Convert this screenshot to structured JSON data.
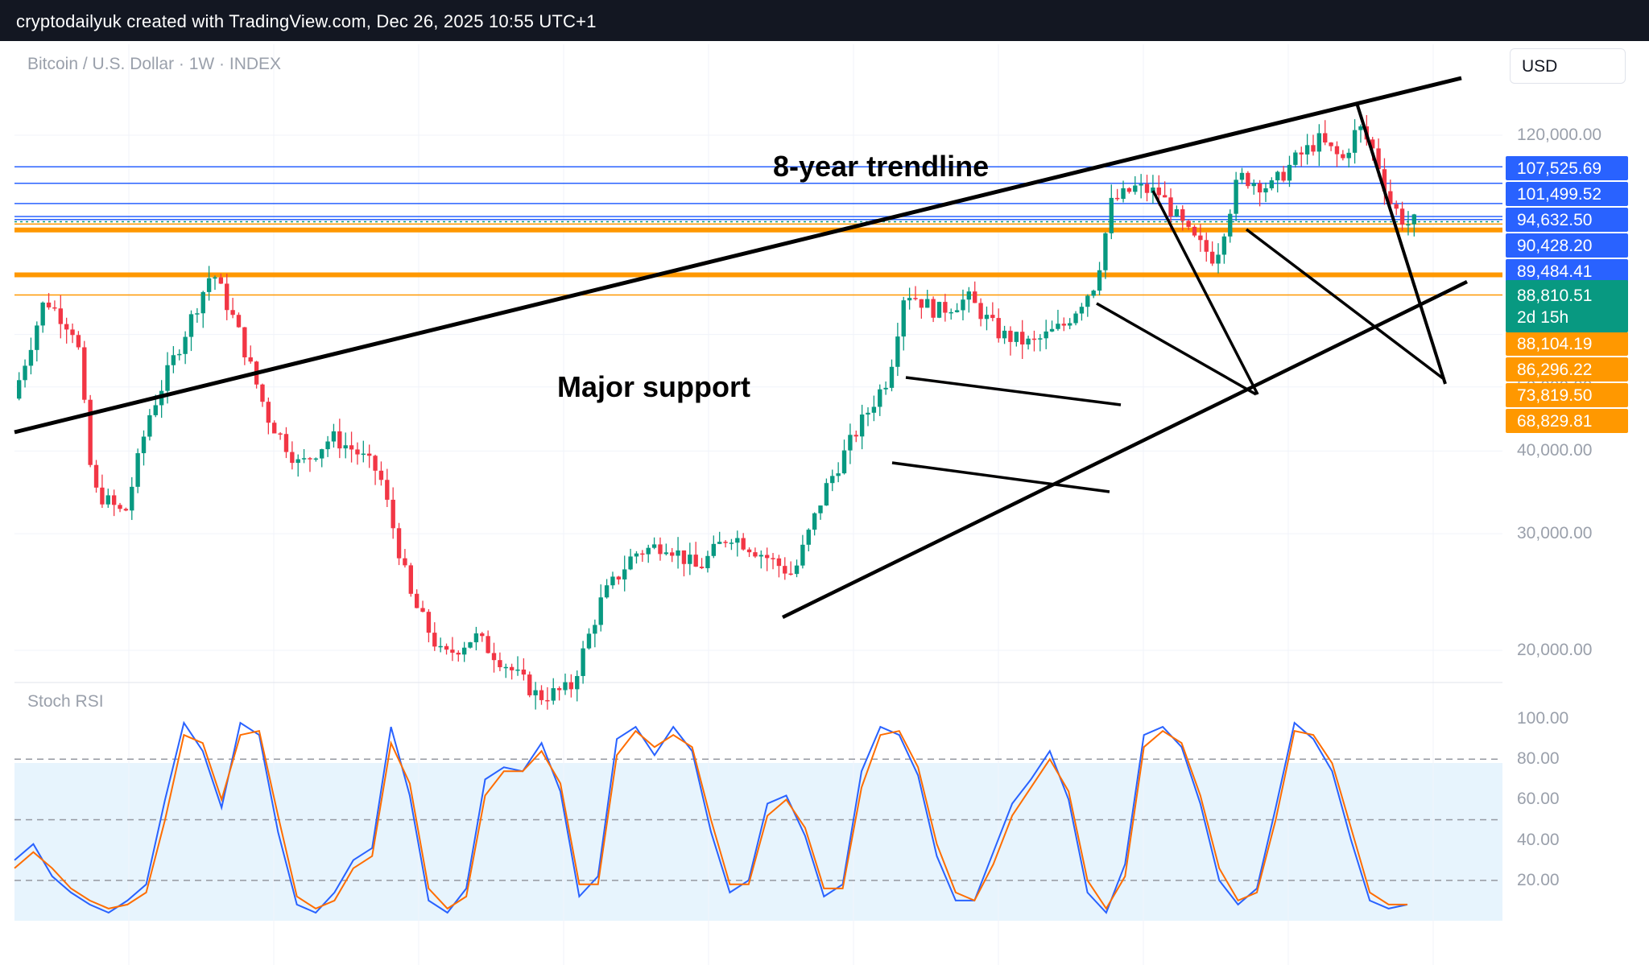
{
  "header": {
    "text": "cryptodailyuk created with TradingView.com, Dec 26, 2025 10:55 UTC+1"
  },
  "symbol": "Bitcoin / U.S. Dollar · 1W · INDEX",
  "currency": "USD",
  "chart_data": [
    {
      "type": "candlestick",
      "title": "Bitcoin / U.S. Dollar · 1W · INDEX",
      "y_scale": "log",
      "ylim": [
        14000,
        160000
      ],
      "y_ticks": [
        "120,000.00",
        "60,000.00",
        "50,000.00",
        "40,000.00",
        "30,000.00",
        "20,000.00"
      ],
      "y_tick_values": [
        120000,
        60000,
        50000,
        40000,
        30000,
        20000
      ],
      "horizontal_levels": [
        {
          "label": "107,525.69",
          "value": 107525.69,
          "color": "#2962ff"
        },
        {
          "label": "101,499.52",
          "value": 101499.52,
          "color": "#2962ff"
        },
        {
          "label": "94,632.50",
          "value": 94632.5,
          "color": "#2962ff"
        },
        {
          "label": "90,428.20",
          "value": 90428.2,
          "color": "#2962ff"
        },
        {
          "label": "89,484.41",
          "value": 89484.41,
          "color": "#2962ff"
        },
        {
          "label": "88,104.19",
          "value": 88104.19,
          "color": "#ff9800"
        },
        {
          "label": "86,296.22",
          "value": 86296.22,
          "color": "#ff9800"
        },
        {
          "label": "73,819.50",
          "value": 73819.5,
          "color": "#ff9800"
        },
        {
          "label": "68,829.81",
          "value": 68829.81,
          "color": "#ff9800"
        }
      ],
      "current_price": {
        "label": "88,810.51",
        "countdown": "2d 15h",
        "value": 88810.51,
        "color": "#089981"
      },
      "annotations": [
        "8-year trendline",
        "Major support"
      ],
      "series_shape": [
        [
          0,
          48000
        ],
        [
          40,
          68000
        ],
        [
          80,
          60000
        ],
        [
          100,
          35000
        ],
        [
          140,
          32000
        ],
        [
          170,
          45000
        ],
        [
          220,
          62000
        ],
        [
          250,
          75000
        ],
        [
          280,
          62000
        ],
        [
          320,
          45000
        ],
        [
          360,
          38000
        ],
        [
          400,
          42000
        ],
        [
          430,
          40000
        ],
        [
          460,
          37000
        ],
        [
          500,
          24000
        ],
        [
          540,
          19500
        ],
        [
          580,
          21000
        ],
        [
          620,
          19000
        ],
        [
          660,
          17000
        ],
        [
          700,
          17500
        ],
        [
          740,
          24000
        ],
        [
          780,
          28000
        ],
        [
          820,
          29000
        ],
        [
          860,
          26500
        ],
        [
          900,
          30000
        ],
        [
          940,
          28000
        ],
        [
          980,
          26000
        ],
        [
          1020,
          35000
        ],
        [
          1060,
          43000
        ],
        [
          1100,
          52000
        ],
        [
          1120,
          70000
        ],
        [
          1160,
          65000
        ],
        [
          1200,
          68000
        ],
        [
          1240,
          60000
        ],
        [
          1280,
          58000
        ],
        [
          1320,
          62000
        ],
        [
          1360,
          72000
        ],
        [
          1380,
          95000
        ],
        [
          1410,
          100000
        ],
        [
          1440,
          98000
        ],
        [
          1480,
          84000
        ],
        [
          1510,
          78000
        ],
        [
          1540,
          104000
        ],
        [
          1580,
          100000
        ],
        [
          1610,
          110000
        ],
        [
          1640,
          118000
        ],
        [
          1670,
          110000
        ],
        [
          1690,
          124000
        ],
        [
          1710,
          113000
        ],
        [
          1730,
          95000
        ],
        [
          1750,
          88000
        ],
        [
          1760,
          88810
        ]
      ],
      "colors": {
        "up": "#089981",
        "down": "#f23645"
      }
    },
    {
      "type": "line",
      "title": "Stoch RSI",
      "ylim": [
        0,
        100
      ],
      "y_ticks": [
        "100.00",
        "80.00",
        "60.00",
        "40.00",
        "20.00"
      ],
      "y_tick_values": [
        100,
        80,
        60,
        40,
        20
      ],
      "bands": {
        "upper": 80,
        "middle": 50,
        "lower": 20
      },
      "series": [
        {
          "name": "",
          "color": "#2962ff",
          "values": [
            30,
            38,
            22,
            14,
            8,
            4,
            10,
            18,
            60,
            98,
            84,
            56,
            98,
            92,
            44,
            8,
            4,
            14,
            30,
            36,
            96,
            62,
            10,
            4,
            16,
            70,
            76,
            74,
            88,
            64,
            12,
            22,
            90,
            96,
            82,
            96,
            84,
            44,
            14,
            20,
            58,
            62,
            42,
            12,
            18,
            74,
            96,
            92,
            72,
            32,
            10,
            10,
            34,
            58,
            70,
            84,
            60,
            14,
            4,
            28,
            92,
            96,
            86,
            58,
            20,
            8,
            16,
            56,
            98,
            90,
            74,
            40,
            10,
            6,
            8
          ]
        },
        {
          "name": "",
          "color": "#ff6d00",
          "values": [
            26,
            34,
            26,
            16,
            10,
            6,
            8,
            14,
            50,
            92,
            88,
            60,
            92,
            94,
            52,
            12,
            6,
            10,
            26,
            32,
            88,
            68,
            16,
            6,
            12,
            62,
            74,
            74,
            84,
            68,
            18,
            18,
            82,
            94,
            86,
            92,
            86,
            50,
            18,
            18,
            52,
            60,
            46,
            16,
            16,
            66,
            92,
            94,
            76,
            38,
            14,
            10,
            28,
            52,
            66,
            80,
            64,
            20,
            6,
            22,
            86,
            94,
            88,
            62,
            26,
            10,
            14,
            50,
            94,
            92,
            78,
            46,
            14,
            8,
            8
          ]
        }
      ]
    }
  ]
}
